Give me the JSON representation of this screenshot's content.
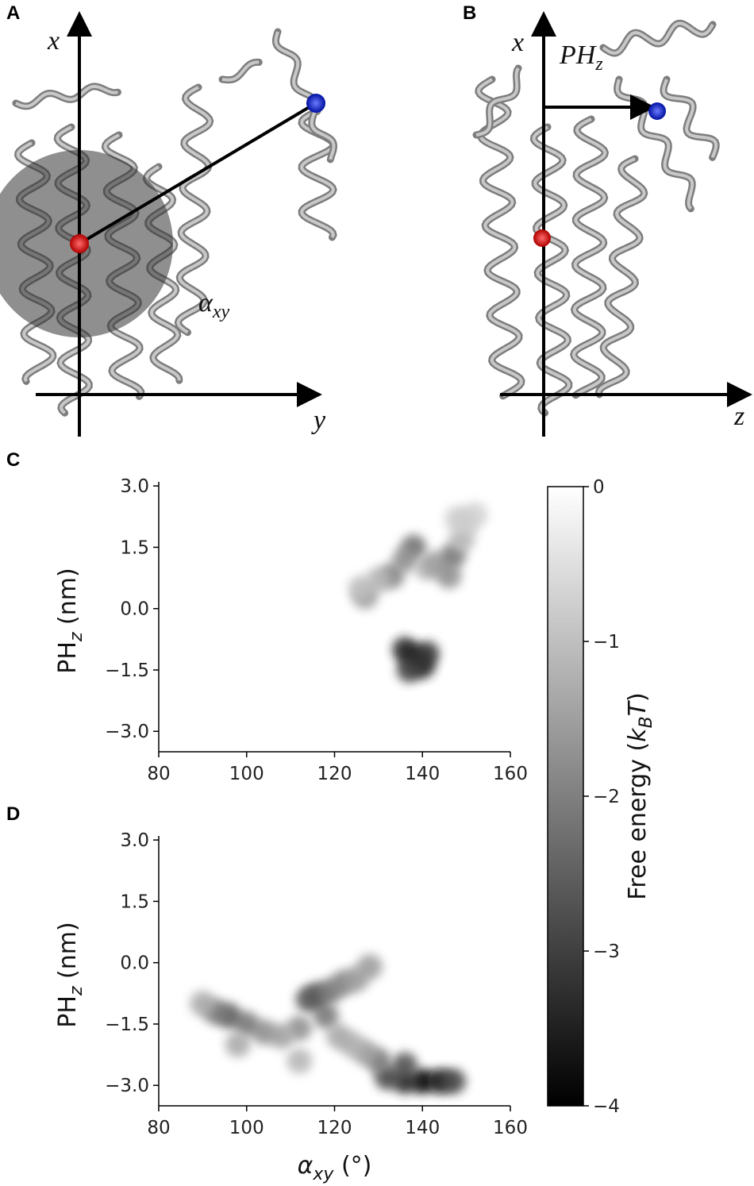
{
  "panel_a": {
    "label": "A",
    "axis_vertical": "x",
    "axis_horizontal": "y",
    "angle": "α",
    "angle_sub": "xy"
  },
  "panel_b": {
    "label": "B",
    "axis_vertical": "x",
    "axis_horizontal": "z",
    "distance": "PH",
    "distance_sub": "z"
  },
  "colorbar": {
    "colormap": "gray",
    "lim": [
      -4,
      0
    ],
    "ticks": [
      0,
      {
        "value": -1,
        "label": "−1"
      },
      {
        "value": -2,
        "label": "−2"
      },
      {
        "value": -3,
        "label": "−3"
      },
      {
        "value": -4,
        "label": "−4"
      }
    ],
    "label_parts": [
      "Free energy (",
      "k",
      "B",
      "T",
      ")"
    ]
  },
  "chart_data": [
    {
      "type": "heatmap",
      "label": "C",
      "xlim": [
        80,
        160
      ],
      "xticks": [
        80,
        100,
        120,
        140,
        160
      ],
      "ylim": [
        -3.5,
        3.1
      ],
      "yticks": [
        {
          "value": 3,
          "label": "3.0"
        },
        1.5,
        {
          "value": 0,
          "label": "0.0"
        },
        {
          "value": -1.5,
          "label": "−1.5"
        },
        {
          "value": -3,
          "label": "−3.0"
        }
      ],
      "ylabel_parts": [
        "PH",
        "z",
        " (nm)"
      ],
      "x": [
        138,
        136,
        140,
        141,
        137,
        138,
        136,
        133,
        130,
        127,
        126,
        141,
        143,
        146,
        147,
        149,
        150,
        152,
        148
      ],
      "y": [
        -1.2,
        -1.0,
        -1.4,
        -1.1,
        -1.5,
        1.5,
        1.2,
        0.8,
        0.7,
        0.3,
        0.5,
        1.0,
        1.1,
        0.8,
        1.3,
        1.7,
        2.1,
        2.3,
        2.2
      ],
      "values": [
        -3.8,
        -3.5,
        -3.5,
        -3.2,
        -3,
        -2.3,
        -1.8,
        -2,
        -1.2,
        -1.6,
        -1,
        -1.2,
        -1.5,
        -1.8,
        -2.2,
        -1.2,
        -0.9,
        -0.7,
        -0.8
      ]
    },
    {
      "type": "heatmap",
      "label": "D",
      "xlim": [
        80,
        160
      ],
      "xticks": [
        80,
        100,
        120,
        140,
        160
      ],
      "ylim": [
        -3.5,
        3.1
      ],
      "yticks": [
        {
          "value": 3,
          "label": "3.0"
        },
        1.5,
        {
          "value": 0,
          "label": "0.0"
        },
        {
          "value": -1.5,
          "label": "−1.5"
        },
        {
          "value": -3,
          "label": "−3.0"
        }
      ],
      "ylabel_parts": [
        "PH",
        "z",
        " (nm)"
      ],
      "xlabel_parts": [
        "α",
        "xy",
        " (°)"
      ],
      "x": [
        140,
        144,
        136,
        147,
        132,
        136,
        130,
        127,
        124,
        121,
        118,
        116,
        114,
        119,
        122,
        125,
        128,
        112,
        108,
        104,
        100,
        96,
        93,
        90,
        98,
        112
      ],
      "y": [
        -2.9,
        -2.9,
        -2.9,
        -2.9,
        -2.8,
        -2.5,
        -2.4,
        -2.2,
        -2.0,
        -1.8,
        -1.3,
        -0.8,
        -0.9,
        -0.7,
        -0.5,
        -0.4,
        -0.1,
        -1.6,
        -1.8,
        -1.7,
        -1.5,
        -1.3,
        -1.2,
        -1.0,
        -2.0,
        -2.4
      ],
      "values": [
        -4,
        -3.8,
        -3.5,
        -3,
        -3,
        -2.8,
        -2.2,
        -1.6,
        -1.3,
        -1.4,
        -2.2,
        -2.8,
        -2.6,
        -2.2,
        -2,
        -1.6,
        -1.6,
        -1.8,
        -1.5,
        -1.8,
        -2.2,
        -2.6,
        -2.2,
        -1.4,
        -1.4,
        -1.2
      ]
    }
  ]
}
